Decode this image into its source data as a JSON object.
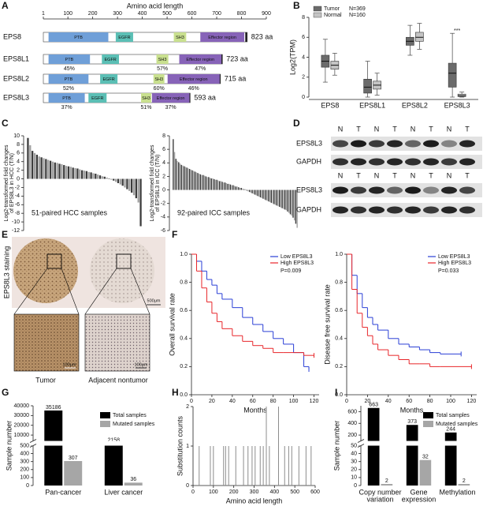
{
  "panel_letters": [
    "A",
    "B",
    "C",
    "D",
    "E",
    "F",
    "G",
    "H",
    "I"
  ],
  "chart_data": [
    {
      "type": "domains",
      "title": "Amino acid length",
      "xlim": [
        1,
        900
      ],
      "xticks": [
        1,
        100,
        200,
        300,
        400,
        500,
        600,
        700,
        800,
        900
      ],
      "proteins": [
        {
          "name": "EPS8",
          "length": 823,
          "length_label": "823 aa",
          "domains": [
            {
              "name": "PTB",
              "start": 22,
              "end": 263,
              "color": "#6f9fd8"
            },
            {
              "name": "EGFR",
              "start": 293,
              "end": 363,
              "color": "#5bbfb5"
            },
            {
              "name": "SH3",
              "start": 527,
              "end": 577,
              "color": "#c9e08f"
            },
            {
              "name": "Effector region",
              "start": 634,
              "end": 811,
              "color": "#8763b8"
            }
          ]
        },
        {
          "name": "EPS8L1",
          "length": 723,
          "length_label": "723 aa",
          "domains": [
            {
              "name": "PTB",
              "start": 22,
              "end": 189,
              "color": "#6f9fd8",
              "identity": 45,
              "identity_label": "45%"
            },
            {
              "name": "EGFR",
              "start": 237,
              "end": 306,
              "color": "#5bbfb5"
            },
            {
              "name": "SH3",
              "start": 457,
              "end": 505,
              "color": "#c9e08f",
              "identity": 57,
              "identity_label": "57%"
            },
            {
              "name": "Effector region",
              "start": 549,
              "end": 719,
              "color": "#8763b8",
              "identity": 47,
              "identity_label": "47%"
            }
          ]
        },
        {
          "name": "EPS8L2",
          "length": 715,
          "length_label": "715 aa",
          "domains": [
            {
              "name": "PTB",
              "start": 22,
              "end": 183,
              "color": "#6f9fd8",
              "identity": 52,
              "identity_label": "52%"
            },
            {
              "name": "EGFR",
              "start": 230,
              "end": 300,
              "color": "#5bbfb5"
            },
            {
              "name": "SH3",
              "start": 445,
              "end": 489,
              "color": "#c9e08f",
              "identity": 60,
              "identity_label": "60%"
            },
            {
              "name": "Effector region",
              "start": 502,
              "end": 712,
              "color": "#8763b8",
              "identity": 46,
              "identity_label": "46%"
            }
          ]
        },
        {
          "name": "EPS8L3",
          "length": 593,
          "length_label": "593 aa",
          "domains": [
            {
              "name": "PTB",
              "start": 22,
              "end": 168,
              "color": "#6f9fd8",
              "identity": 37,
              "identity_label": "37%"
            },
            {
              "name": "EGFR",
              "start": 183,
              "end": 256,
              "color": "#5bbfb5"
            },
            {
              "name": "SH3",
              "start": 395,
              "end": 436,
              "color": "#c9e08f",
              "identity": 51,
              "identity_label": "51%"
            },
            {
              "name": "Effector region",
              "start": 439,
              "end": 590,
              "color": "#8763b8",
              "identity": 37,
              "identity_label": "37%"
            }
          ]
        }
      ]
    },
    {
      "type": "box",
      "ylabel": "Log2(TPM)",
      "ylim": [
        0,
        8
      ],
      "yticks": [
        0,
        2,
        4,
        6,
        8
      ],
      "legend": "upper left",
      "annotation": "***",
      "categories": [
        "EPS8",
        "EPS8L1",
        "EPS8L2",
        "EPS8L3"
      ],
      "series": [
        {
          "name": "Tumor",
          "n_label": "N=369",
          "color": "#6b6b6b",
          "min": [
            1.5,
            0,
            4.2,
            0
          ],
          "q1": [
            3.0,
            0.4,
            5.2,
            1.0
          ],
          "median": [
            3.6,
            1.0,
            5.6,
            2.4
          ],
          "q3": [
            4.2,
            1.8,
            6.0,
            3.4
          ],
          "max": [
            5.8,
            3.6,
            7.2,
            6.4
          ]
        },
        {
          "name": "Normal",
          "n_label": "N=160",
          "color": "#c4c4c4",
          "min": [
            2.2,
            0.2,
            4.8,
            0
          ],
          "q1": [
            2.8,
            0.8,
            5.6,
            0.05
          ],
          "median": [
            3.2,
            1.2,
            6.0,
            0.15
          ],
          "q3": [
            3.6,
            1.6,
            6.5,
            0.3
          ],
          "max": [
            4.4,
            2.4,
            7.4,
            0.5
          ]
        }
      ]
    },
    {
      "type": "bar",
      "ylabel": [
        "Log2-transformed fold changes",
        "of EPS8L3 in HCC (T/N)"
      ],
      "annotation": "51-paired HCC samples",
      "ylim": [
        -12,
        10
      ],
      "yticks": [
        10,
        8,
        6,
        4,
        2,
        0,
        -2,
        -4,
        -6,
        -8,
        -10,
        -12
      ],
      "colors": [
        "#3c3c3c",
        "#a0a0a0"
      ],
      "values": [
        9.5,
        7.8,
        6.5,
        6.0,
        5.6,
        5.2,
        5.0,
        4.8,
        4.6,
        4.4,
        4.2,
        4.0,
        3.8,
        3.7,
        3.5,
        3.4,
        3.2,
        3.0,
        2.9,
        2.8,
        2.6,
        2.5,
        2.4,
        2.2,
        2.0,
        1.9,
        1.8,
        1.6,
        1.5,
        1.3,
        1.2,
        1.0,
        0.8,
        0.6,
        0.5,
        0.3,
        0.1,
        -0.2,
        -0.4,
        -0.7,
        -1.0,
        -1.3,
        -1.6,
        -2.0,
        -2.4,
        -2.8,
        -3.2,
        -3.8,
        -4.5,
        -5.5,
        -11.0
      ]
    },
    {
      "type": "bar",
      "ylabel": [
        "Log2-transformed fold changes",
        "of EPS8L3 in ICC (T/N)"
      ],
      "annotation": "92-paired ICC samples",
      "ylim": [
        -6,
        8
      ],
      "yticks": [
        8,
        6,
        4,
        2,
        0,
        -2,
        -4,
        -6
      ],
      "colors": [
        "#3c3c3c",
        "#a0a0a0"
      ],
      "values": [
        7.5,
        5.6,
        4.6,
        4.3,
        4.1,
        3.9,
        3.7,
        3.6,
        3.5,
        3.4,
        3.3,
        3.2,
        3.1,
        3.0,
        2.9,
        2.8,
        2.7,
        2.6,
        2.5,
        2.4,
        2.3,
        2.2,
        2.2,
        2.1,
        2.0,
        1.9,
        1.9,
        1.8,
        1.7,
        1.7,
        1.6,
        1.5,
        1.5,
        1.4,
        1.3,
        1.3,
        1.2,
        1.1,
        1.1,
        1.0,
        0.9,
        0.9,
        0.8,
        0.7,
        0.7,
        0.6,
        0.5,
        0.5,
        0.4,
        0.3,
        0.3,
        0.2,
        0.1,
        0.1,
        -0.1,
        -0.2,
        -0.3,
        -0.4,
        -0.5,
        -0.6,
        -0.7,
        -0.8,
        -0.9,
        -1.0,
        -1.1,
        -1.2,
        -1.3,
        -1.4,
        -1.5,
        -1.6,
        -1.7,
        -1.8,
        -1.9,
        -2.0,
        -2.1,
        -2.2,
        -2.3,
        -2.4,
        -2.5,
        -2.6,
        -2.7,
        -2.8,
        -2.9,
        -3.0,
        -3.2,
        -3.4,
        -3.6,
        -3.8,
        -4.1,
        -4.5,
        -5.0,
        -5.6
      ]
    },
    {
      "type": "survival",
      "ylabel": "Overall survival rate",
      "xlabel": "Months",
      "xlim": [
        0,
        125
      ],
      "xticks": [
        0,
        20,
        40,
        60,
        80,
        100,
        120
      ],
      "ylim": [
        0,
        1
      ],
      "yticks": [
        {
          "value": 0,
          "label": "0.0"
        },
        0.2,
        0.4,
        0.6,
        0.8,
        {
          "value": 1,
          "label": "1.0"
        }
      ],
      "legend": "upper right",
      "annotation": "P=0.009",
      "series": [
        {
          "name": "Low EPS8L3",
          "color": "#2a3fd6",
          "x": [
            0,
            5,
            10,
            15,
            20,
            25,
            30,
            40,
            50,
            60,
            70,
            80,
            90,
            100,
            110,
            115
          ],
          "values": [
            1,
            0.95,
            0.88,
            0.82,
            0.78,
            0.72,
            0.68,
            0.62,
            0.55,
            0.5,
            0.45,
            0.4,
            0.36,
            0.3,
            0.2,
            0.18
          ]
        },
        {
          "name": "High EPS8L3",
          "color": "#e8262a",
          "x": [
            0,
            5,
            10,
            15,
            20,
            25,
            30,
            40,
            50,
            60,
            70,
            80,
            90,
            100,
            110,
            120
          ],
          "values": [
            1,
            0.88,
            0.76,
            0.66,
            0.58,
            0.52,
            0.47,
            0.42,
            0.38,
            0.35,
            0.33,
            0.3,
            0.3,
            0.3,
            0.28,
            0.28
          ]
        }
      ]
    },
    {
      "type": "survival",
      "ylabel": "Disease free survival rate",
      "xlabel": "Months",
      "xlim": [
        0,
        125
      ],
      "xticks": [
        0,
        20,
        40,
        60,
        80,
        100,
        120
      ],
      "ylim": [
        0,
        1
      ],
      "yticks": [
        {
          "value": 0,
          "label": "0.0"
        },
        0.2,
        0.4,
        0.6,
        0.8,
        {
          "value": 1,
          "label": "1.0"
        }
      ],
      "legend": "upper right",
      "annotation": "P=0.033",
      "series": [
        {
          "name": "Low EPS8L3",
          "color": "#2a3fd6",
          "x": [
            0,
            5,
            10,
            15,
            20,
            25,
            30,
            40,
            50,
            60,
            70,
            80,
            90,
            100,
            110
          ],
          "values": [
            1,
            0.85,
            0.72,
            0.62,
            0.55,
            0.5,
            0.46,
            0.4,
            0.36,
            0.34,
            0.32,
            0.3,
            0.29,
            0.29,
            0.29
          ]
        },
        {
          "name": "High EPS8L3",
          "color": "#e8262a",
          "x": [
            0,
            5,
            10,
            15,
            20,
            25,
            30,
            40,
            50,
            60,
            70,
            80,
            90,
            120
          ],
          "values": [
            1,
            0.75,
            0.58,
            0.48,
            0.42,
            0.36,
            0.32,
            0.28,
            0.25,
            0.22,
            0.22,
            0.2,
            0.2,
            0.2
          ]
        }
      ]
    },
    {
      "type": "broken_bar",
      "ylabel": "Sample number",
      "ylim": [
        0,
        40000
      ],
      "ybreak": [
        500,
        4000
      ],
      "yticks": [
        0,
        100,
        200,
        300,
        400,
        500,
        10000,
        20000,
        30000,
        40000
      ],
      "legend": "upper right",
      "categories": [
        [
          "Pan-cancer"
        ],
        [
          "Liver cancer"
        ]
      ],
      "series": [
        {
          "name": "Total samples",
          "color": "#000000",
          "values": [
            35186,
            2158
          ]
        },
        {
          "name": "Mutated samples",
          "color": "#a6a6a6",
          "values": [
            307,
            36
          ]
        }
      ]
    },
    {
      "type": "stem",
      "xlabel": "Amino acid length",
      "ylabel": "Substitution counts",
      "xlim": [
        0,
        600
      ],
      "xticks": [
        0,
        100,
        200,
        300,
        400,
        500,
        600
      ],
      "ylim": [
        0,
        2
      ],
      "yticks": [
        0,
        1,
        2
      ],
      "color": "#8c8c8c",
      "x": [
        30,
        85,
        100,
        150,
        160,
        175,
        210,
        248,
        270,
        290,
        305,
        330,
        345,
        360,
        375,
        420,
        450,
        470,
        485,
        520,
        555,
        580
      ],
      "values": [
        1,
        1,
        1,
        1,
        1,
        1,
        1,
        1,
        1,
        1,
        1,
        1,
        1,
        2,
        1,
        2,
        1,
        1,
        1,
        1,
        1,
        1
      ]
    },
    {
      "type": "broken_bar",
      "ylabel": "Sample number",
      "ylim": [
        0,
        700
      ],
      "ybreak": [
        50,
        100
      ],
      "yticks": [
        0,
        10,
        20,
        30,
        40,
        50,
        200,
        400,
        600
      ],
      "legend": "upper right",
      "categories": [
        [
          "Copy number",
          "variation"
        ],
        [
          "Gene",
          "expression"
        ],
        [
          "Methylation"
        ]
      ],
      "series": [
        {
          "name": "Total samples",
          "color": "#000000",
          "values": [
            663,
            373,
            244
          ]
        },
        {
          "name": "Mutated samples",
          "color": "#a6a6a6",
          "values": [
            2,
            32,
            2
          ]
        }
      ]
    }
  ],
  "blot": {
    "groups": [
      {
        "lanes": [
          "N",
          "T",
          "N",
          "T",
          "N",
          "T",
          "N",
          "T"
        ],
        "rows": [
          "EPS8L3",
          "GAPDH"
        ]
      },
      {
        "lanes": [
          "N",
          "T",
          "N",
          "T",
          "N",
          "T",
          "N",
          "T"
        ],
        "rows": [
          "EPS8L3",
          "GAPDH"
        ]
      }
    ]
  },
  "ihc": {
    "stain_label": "EPS8L3 staining",
    "scale_main": "500μm",
    "images": [
      {
        "caption": "Tumor",
        "scale": "100μm"
      },
      {
        "caption": "Adjacent nontumor",
        "scale": "100μm"
      }
    ]
  }
}
